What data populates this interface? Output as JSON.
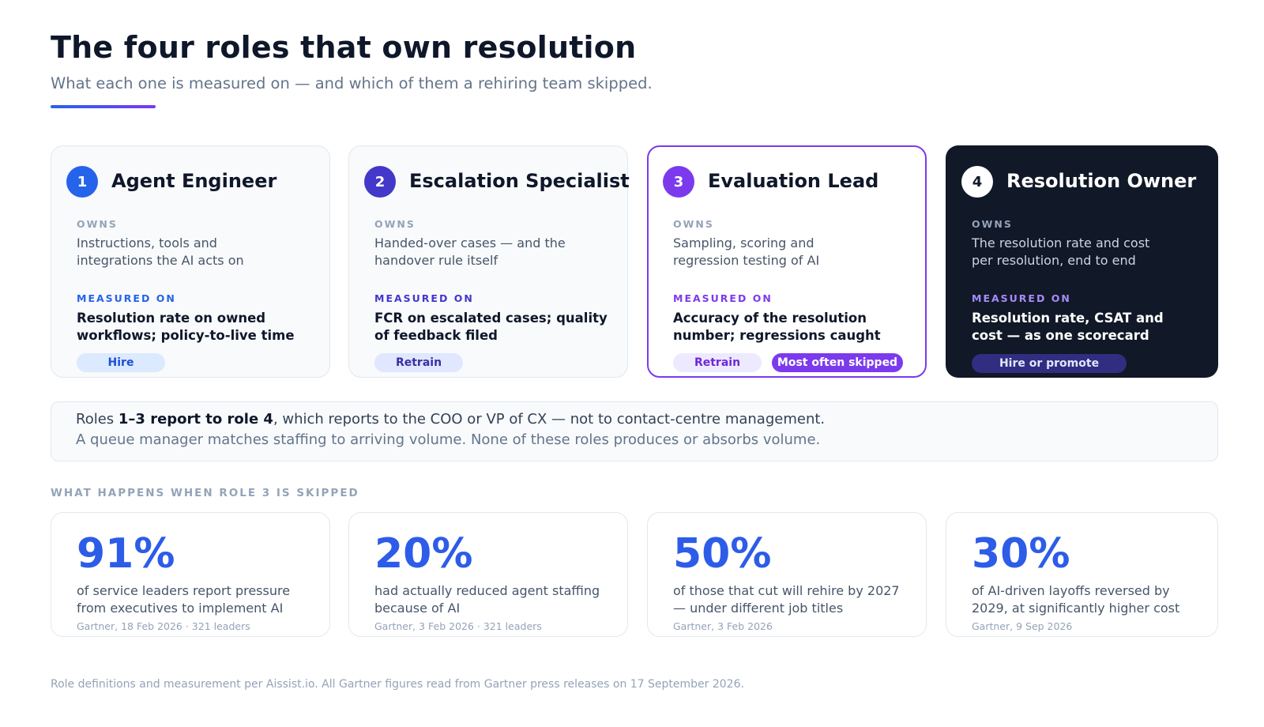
{
  "header": {
    "title": "The four roles that own resolution",
    "subtitle": "What each one is measured on — and which of them a rehiring team skipped."
  },
  "roles": [
    {
      "number": "1",
      "name": "Agent Engineer",
      "owns_label": "OWNS",
      "owns": "Instructions, tools and integrations the AI acts on",
      "measured_label": "MEASURED ON",
      "measured": "Resolution rate on owned workflows; policy-to-live time",
      "tag": "Hire"
    },
    {
      "number": "2",
      "name": "Escalation Specialist",
      "owns_label": "OWNS",
      "owns": "Handed-over cases — and the handover rule itself",
      "measured_label": "MEASURED ON",
      "measured": "FCR on escalated cases; quality of feedback filed",
      "tag": "Retrain"
    },
    {
      "number": "3",
      "name": "Evaluation Lead",
      "owns_label": "OWNS",
      "owns": "Sampling, scoring and regression testing of AI",
      "measured_label": "MEASURED ON",
      "measured": "Accuracy of the resolution number; regressions caught",
      "tag": "Retrain",
      "flag": "Most often skipped"
    },
    {
      "number": "4",
      "name": "Resolution Owner",
      "owns_label": "OWNS",
      "owns": "The resolution rate and cost per resolution, end to end",
      "measured_label": "MEASURED ON",
      "measured": "Resolution rate, CSAT and cost — as one scorecard",
      "tag": "Hire or promote"
    }
  ],
  "reporting": {
    "prefix": "Roles ",
    "bold": "1–3 report to role 4",
    "suffix": ", which reports to the COO or VP of CX — not to contact-centre management.",
    "note": "A queue manager matches staffing to arriving volume. None of these roles produces or absorbs volume."
  },
  "stats_section": {
    "label": "WHAT HAPPENS WHEN ROLE 3 IS SKIPPED",
    "items": [
      {
        "value": "91%",
        "desc": "of service leaders report pressure from executives to implement AI",
        "source": "Gartner, 18 Feb 2026 · 321 leaders"
      },
      {
        "value": "20%",
        "desc": "had actually reduced agent staffing because of AI",
        "source": "Gartner, 3 Feb 2026 · 321 leaders"
      },
      {
        "value": "50%",
        "desc": "of those that cut will rehire by 2027 — under different job titles",
        "source": "Gartner, 3 Feb 2026"
      },
      {
        "value": "30%",
        "desc": "of AI-driven layoffs reversed by 2029, at significantly higher cost",
        "source": "Gartner, 9 Sep 2026"
      }
    ]
  },
  "footer": "Role definitions and measurement per Aissist.io. All Gartner figures read from Gartner press releases on 17 September 2026.",
  "colors": {
    "accent_blue": "#2563eb",
    "accent_indigo": "#4338ca",
    "accent_purple": "#7c3aed",
    "dark_card": "#111827",
    "stat_blue": "#2d5ce8"
  }
}
